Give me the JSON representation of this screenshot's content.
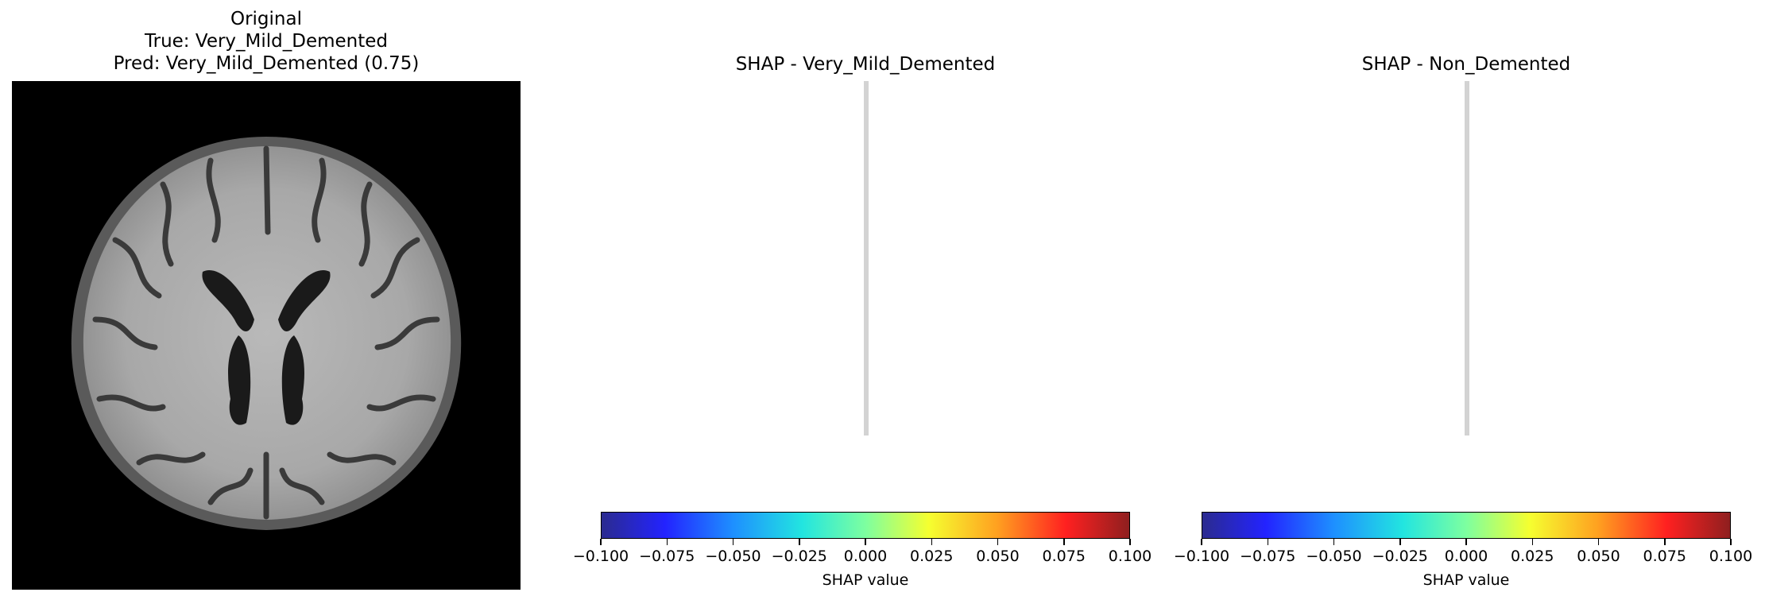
{
  "chart_data": [
    {
      "type": "heatmap",
      "title_lines": [
        "Original",
        "True: Very_Mild_Demented",
        "Pred: Very_Mild_Demented (0.75)"
      ]
    },
    {
      "type": "heatmap",
      "title": "SHAP - Very_Mild_Demented",
      "colorbar": {
        "label": "SHAP value",
        "range": [
          -0.1,
          0.1
        ],
        "ticks": [
          "−0.100",
          "−0.075",
          "−0.050",
          "−0.025",
          "0.000",
          "0.025",
          "0.050",
          "0.075",
          "0.100"
        ],
        "colormap": "jet"
      }
    },
    {
      "type": "heatmap",
      "title": "SHAP - Non_Demented",
      "colorbar": {
        "label": "SHAP value",
        "range": [
          -0.1,
          0.1
        ],
        "ticks": [
          "−0.100",
          "−0.075",
          "−0.050",
          "−0.025",
          "0.000",
          "0.025",
          "0.050",
          "0.075",
          "0.100"
        ],
        "colormap": "jet"
      }
    }
  ]
}
